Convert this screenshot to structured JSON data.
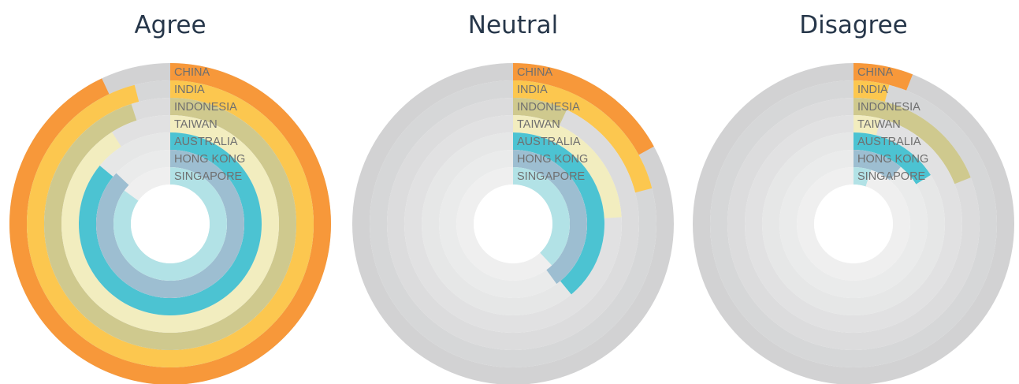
{
  "chart_data": {
    "type": "radial-bar",
    "value_unit": "fraction of a full circle",
    "categories": [
      "CHINA",
      "INDIA",
      "INDONESIA",
      "TAIWAN",
      "AUSTRALIA",
      "HONG KONG",
      "SINGAPORE"
    ],
    "colors": [
      "#f7983a",
      "#fcc74f",
      "#cfc98e",
      "#f2edbf",
      "#4cc3d2",
      "#9dbed1",
      "#b2e2e6"
    ],
    "track_colors": [
      "#d2d2d3",
      "#d6d7d8",
      "#dcdcdd",
      "#e1e1e2",
      "#e6e7e7",
      "#eaebeb",
      "#efefef"
    ],
    "panels": [
      {
        "title": "Agree",
        "values": [
          0.93,
          0.96,
          0.95,
          0.91,
          0.86,
          0.87,
          0.85
        ]
      },
      {
        "title": "Neutral",
        "values": [
          0.17,
          0.21,
          0.07,
          0.24,
          0.39,
          0.4,
          0.38
        ]
      },
      {
        "title": "Disagree",
        "values": [
          0.06,
          0.04,
          0.19,
          0.04,
          0.16,
          0.11,
          0.05
        ]
      }
    ],
    "legend": "labels printed at start of each ring, top-center of each panel",
    "grid": false
  }
}
